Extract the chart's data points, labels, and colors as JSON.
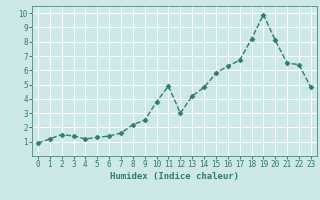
{
  "x": [
    0,
    1,
    2,
    3,
    4,
    5,
    6,
    7,
    8,
    9,
    10,
    11,
    12,
    13,
    14,
    15,
    16,
    17,
    18,
    19,
    20,
    21,
    22,
    23
  ],
  "y": [
    0.9,
    1.2,
    1.5,
    1.4,
    1.2,
    1.3,
    1.4,
    1.6,
    2.2,
    2.5,
    3.8,
    4.9,
    3.0,
    4.2,
    4.8,
    5.8,
    6.3,
    6.7,
    8.2,
    9.9,
    8.1,
    6.5,
    6.4,
    4.8
  ],
  "xlabel": "Humidex (Indice chaleur)",
  "xlim": [
    -0.5,
    23.5
  ],
  "ylim": [
    0.0,
    10.5
  ],
  "line_color": "#2e7d6e",
  "marker": "D",
  "marker_size": 2.5,
  "bg_color": "#cce8e8",
  "grid_color": "#ffffff",
  "tick_label_color": "#2e7d6e",
  "axis_color": "#5a9a8a",
  "yticks": [
    1,
    2,
    3,
    4,
    5,
    6,
    7,
    8,
    9,
    10
  ],
  "xticks": [
    0,
    1,
    2,
    3,
    4,
    5,
    6,
    7,
    8,
    9,
    10,
    11,
    12,
    13,
    14,
    15,
    16,
    17,
    18,
    19,
    20,
    21,
    22,
    23
  ],
  "tick_fontsize": 5.5,
  "xlabel_fontsize": 6.5,
  "linewidth": 1.0
}
